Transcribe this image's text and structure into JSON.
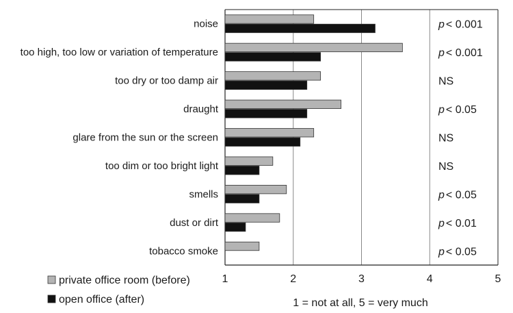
{
  "chart_data": {
    "type": "bar",
    "orientation": "horizontal",
    "categories": [
      "noise",
      "too high, too low or variation of temperature",
      "too dry or too damp air",
      "draught",
      "glare from the sun or the screen",
      "too dim or too bright light",
      "smells",
      "dust or dirt",
      "tobacco smoke"
    ],
    "series": [
      {
        "name": "private office room (before)",
        "color": "#b4b4b4",
        "values": [
          2.3,
          3.6,
          2.4,
          2.7,
          2.3,
          1.7,
          1.9,
          1.8,
          1.5
        ]
      },
      {
        "name": "open office (after)",
        "color": "#111111",
        "values": [
          3.2,
          2.4,
          2.2,
          2.2,
          2.1,
          1.5,
          1.5,
          1.3,
          1.0
        ]
      }
    ],
    "significance": [
      {
        "prefix": "p",
        "rest": "< 0.001"
      },
      {
        "prefix": "p",
        "rest": "< 0.001"
      },
      {
        "prefix": "",
        "rest": "NS"
      },
      {
        "prefix": "p",
        "rest": "< 0.05"
      },
      {
        "prefix": "",
        "rest": "NS"
      },
      {
        "prefix": "",
        "rest": "NS"
      },
      {
        "prefix": "p",
        "rest": "< 0.05"
      },
      {
        "prefix": "p",
        "rest": "< 0.01"
      },
      {
        "prefix": "p",
        "rest": "< 0.05"
      }
    ],
    "x_ticks": [
      "1",
      "2",
      "3",
      "4",
      "5"
    ],
    "xlim": [
      1,
      5
    ],
    "xlabel": "1 = not at all, 5 = very much",
    "gridlines_at": [
      2,
      3,
      4
    ],
    "legend_position": "bottom-left",
    "colors": {
      "gridline": "#888888",
      "axis": "#222222"
    }
  }
}
